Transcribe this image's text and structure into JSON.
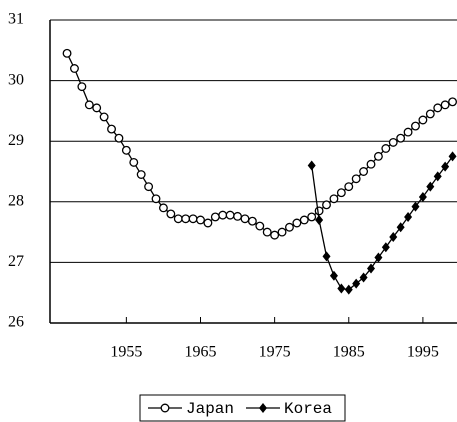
{
  "chart_data": {
    "type": "line",
    "x": [
      1947,
      1948,
      1949,
      1950,
      1951,
      1952,
      1953,
      1954,
      1955,
      1956,
      1957,
      1958,
      1959,
      1960,
      1961,
      1962,
      1963,
      1964,
      1965,
      1966,
      1967,
      1968,
      1969,
      1970,
      1971,
      1972,
      1973,
      1974,
      1975,
      1976,
      1977,
      1978,
      1979,
      1980,
      1981,
      1982,
      1983,
      1984,
      1985,
      1986,
      1987,
      1988,
      1989,
      1990,
      1991,
      1992,
      1993,
      1994,
      1995,
      1996,
      1997,
      1998,
      1999
    ],
    "series": [
      {
        "name": "Japan",
        "color": "#000000",
        "marker": "circle",
        "x": [
          1947,
          1948,
          1949,
          1950,
          1951,
          1952,
          1953,
          1954,
          1955,
          1956,
          1957,
          1958,
          1959,
          1960,
          1961,
          1962,
          1963,
          1964,
          1965,
          1966,
          1967,
          1968,
          1969,
          1970,
          1971,
          1972,
          1973,
          1974,
          1975,
          1976,
          1977,
          1978,
          1979,
          1980,
          1981,
          1982,
          1983,
          1984,
          1985,
          1986,
          1987,
          1988,
          1989,
          1990,
          1991,
          1992,
          1993,
          1994,
          1995,
          1996,
          1997,
          1998,
          1999
        ],
        "values": [
          30.45,
          30.2,
          29.9,
          29.6,
          29.55,
          29.4,
          29.2,
          29.05,
          28.85,
          28.65,
          28.45,
          28.25,
          28.05,
          27.9,
          27.8,
          27.72,
          27.72,
          27.72,
          27.7,
          27.65,
          27.75,
          27.78,
          27.78,
          27.76,
          27.72,
          27.68,
          27.6,
          27.5,
          27.45,
          27.5,
          27.58,
          27.65,
          27.7,
          27.75,
          27.85,
          27.95,
          28.05,
          28.15,
          28.25,
          28.38,
          28.5,
          28.62,
          28.75,
          28.88,
          28.98,
          29.05,
          29.15,
          29.25,
          29.35,
          29.45,
          29.55,
          29.6,
          29.65
        ]
      },
      {
        "name": "Korea",
        "color": "#000000",
        "marker": "diamond",
        "x": [
          1980,
          1981,
          1982,
          1983,
          1984,
          1985,
          1986,
          1987,
          1988,
          1989,
          1990,
          1991,
          1992,
          1993,
          1994,
          1995,
          1996,
          1997,
          1998,
          1999
        ],
        "values": [
          28.6,
          27.7,
          27.1,
          26.78,
          26.57,
          26.55,
          26.65,
          26.75,
          26.9,
          27.08,
          27.25,
          27.42,
          27.58,
          27.75,
          27.92,
          28.08,
          28.25,
          28.42,
          28.58,
          28.75
        ]
      }
    ],
    "xlim": [
      1944.7,
      1999.6
    ],
    "xticks": [
      1955,
      1965,
      1975,
      1985,
      1995
    ],
    "ylim": [
      26,
      31
    ],
    "yticks": [
      26,
      27,
      28,
      29,
      30,
      31
    ],
    "grid": true,
    "legend": "bottom"
  }
}
